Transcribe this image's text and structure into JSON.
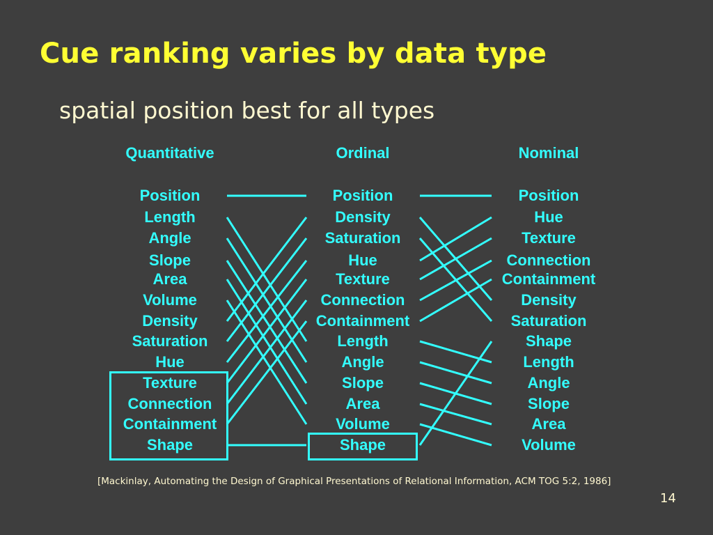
{
  "slide": {
    "title": "Cue ranking varies by data type",
    "subtitle": "spatial position best for all types",
    "citation": "[Mackinlay, Automating the Design of Graphical Presentations of Relational Information, ACM TOG 5:2, 1986]",
    "page_number": "14"
  },
  "columns": {
    "quantitative": {
      "header": "Quantitative",
      "items": [
        "Position",
        "Length",
        "Angle",
        "Slope",
        "Area",
        "Volume",
        "Density",
        "Saturation",
        "Hue",
        "Texture",
        "Connection",
        "Containment",
        "Shape"
      ]
    },
    "ordinal": {
      "header": "Ordinal",
      "items": [
        "Position",
        "Density",
        "Saturation",
        "Hue",
        "Texture",
        "Connection",
        "Containment",
        "Length",
        "Angle",
        "Slope",
        "Area",
        "Volume",
        "Shape"
      ]
    },
    "nominal": {
      "header": "Nominal",
      "items": [
        "Position",
        "Hue",
        "Texture",
        "Connection",
        "Containment",
        "Density",
        "Saturation",
        "Shape",
        "Length",
        "Angle",
        "Slope",
        "Area",
        "Volume"
      ]
    }
  },
  "colors": {
    "background": "#3e3e3e",
    "title": "#ffff33",
    "text": "#fff8d0",
    "accent": "#33ffff"
  }
}
